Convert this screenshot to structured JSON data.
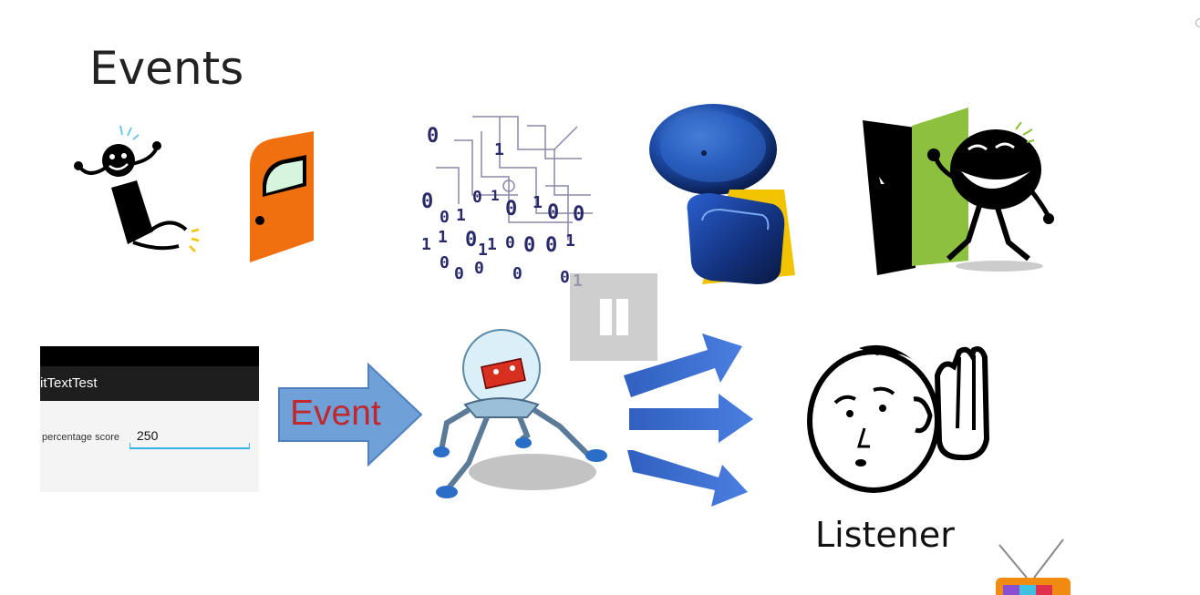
{
  "slide": {
    "title": "Events",
    "listener_label": "Listener",
    "arrow_label": "Event"
  },
  "phone_screenshot": {
    "app_title": "itTextTest",
    "field_label": "percentage score",
    "field_value": "250"
  },
  "video_controls": {
    "pause_icon": "pause-icon"
  },
  "colors": {
    "event_arrow_fill": "#6fa0d8",
    "event_text": "#c0282d",
    "listener_arrows": "#3f6fcf",
    "door": "#f07010",
    "green_door": "#8dc03f",
    "bell": "#1e4fae"
  }
}
